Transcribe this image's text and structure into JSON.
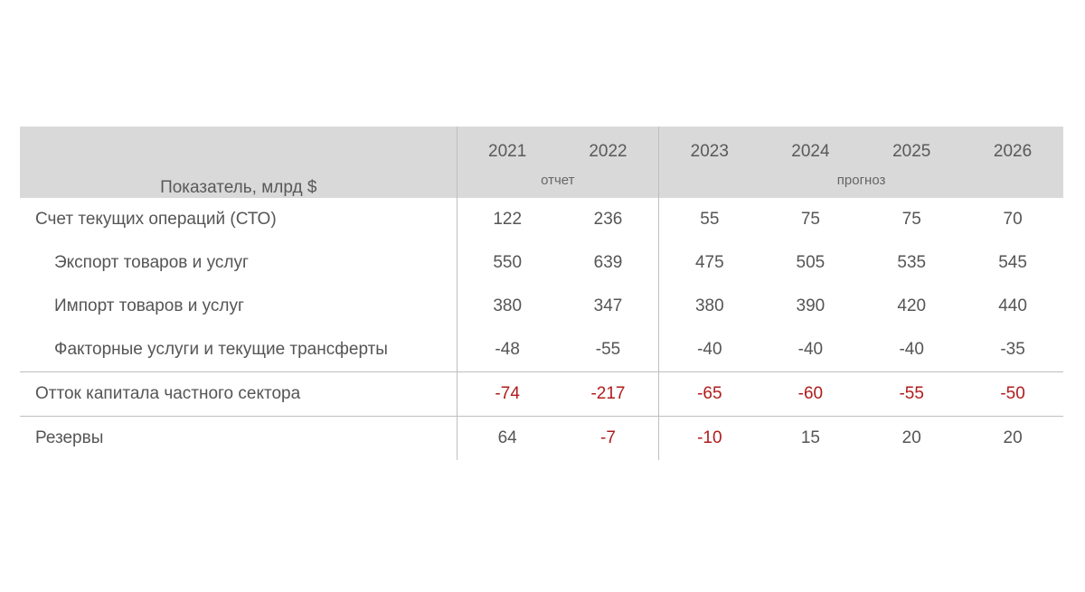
{
  "header": {
    "label": "Показатель, млрд $",
    "years": [
      "2021",
      "2022",
      "2023",
      "2024",
      "2025",
      "2026"
    ],
    "groups": {
      "report": "отчет",
      "forecast": "прогноз"
    }
  },
  "rows": [
    {
      "label": "Счет текущих операций (СТО)",
      "values": [
        "122",
        "236",
        "55",
        "75",
        "75",
        "70"
      ]
    },
    {
      "label": "Экспорт товаров и услуг",
      "values": [
        "550",
        "639",
        "475",
        "505",
        "535",
        "545"
      ]
    },
    {
      "label": "Импорт товаров и услуг",
      "values": [
        "380",
        "347",
        "380",
        "390",
        "420",
        "440"
      ]
    },
    {
      "label": "Факторные услуги и текущие трансферты",
      "values": [
        "-48",
        "-55",
        "-40",
        "-40",
        "-40",
        "-35"
      ]
    },
    {
      "label": "Отток капитала частного сектора",
      "values": [
        "-74",
        "-217",
        "-65",
        "-60",
        "-55",
        "-50"
      ]
    },
    {
      "label": "Резервы",
      "values": [
        "64",
        "-7",
        "-10",
        "15",
        "20",
        "20"
      ]
    }
  ],
  "colors": {
    "header_bg": "#d9d9d9",
    "negative_highlight": "#b01c1c",
    "text": "#555555"
  }
}
